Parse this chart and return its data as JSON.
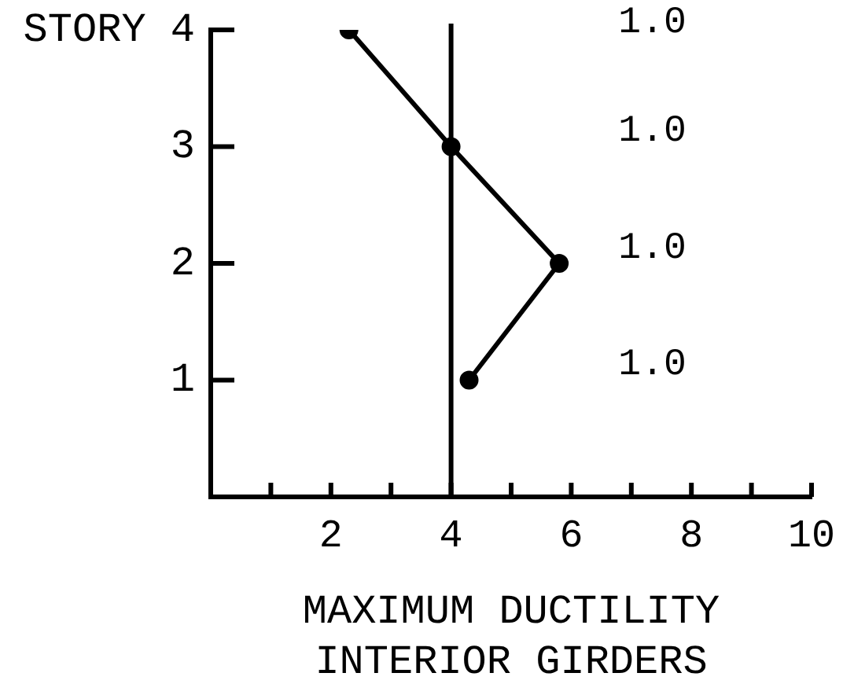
{
  "chart_data": {
    "type": "line",
    "xlabel": "MAXIMUM DUCTILITY\nINTERIOR GIRDERS",
    "x": [
      2.3,
      4.0,
      5.8,
      4.3
    ],
    "values": [
      4,
      3,
      2,
      1
    ],
    "color": "#000000",
    "marker": "circle",
    "line_style": "solid",
    "xlim": [
      0,
      10
    ],
    "xticks": [
      {
        "value": 1,
        "label": null
      },
      2,
      {
        "value": 3,
        "label": null
      },
      4,
      {
        "value": 5,
        "label": null
      },
      6,
      {
        "value": 7,
        "label": null
      },
      8,
      {
        "value": 9,
        "label": null
      },
      10
    ],
    "ylim": [
      0,
      4
    ],
    "yticks": [
      1,
      2,
      3,
      {
        "value": 4,
        "label": "STORY 4"
      }
    ],
    "grid": false,
    "legend": false,
    "ref_lines": [
      {
        "axis": "x",
        "value": 4
      }
    ],
    "annotations": [
      "1.0",
      "1.0",
      "1.0",
      "1.0"
    ]
  }
}
